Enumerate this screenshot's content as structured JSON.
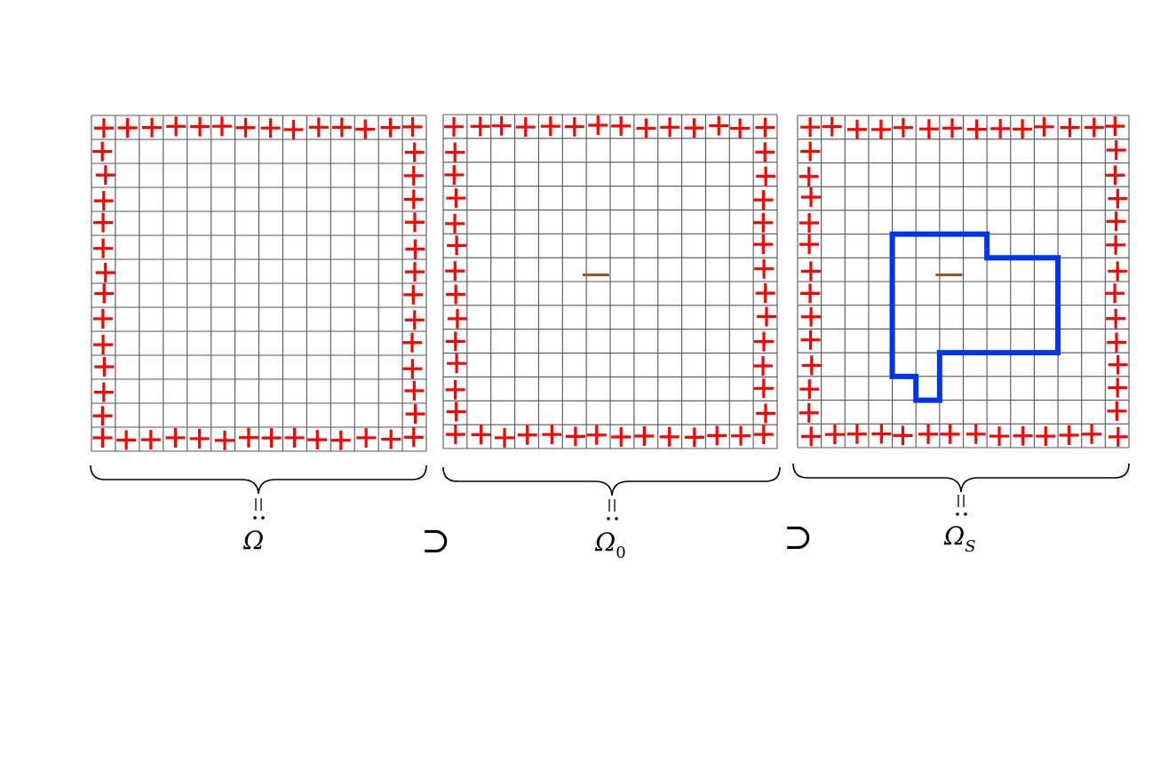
{
  "panels": [
    {
      "id": "omega",
      "label": "Ω",
      "subscript": "",
      "has_center_marker": false,
      "has_region": false
    },
    {
      "id": "omega0",
      "label": "Ω",
      "subscript": "0",
      "has_center_marker": true,
      "has_region": false
    },
    {
      "id": "omegaS",
      "label": "Ω",
      "subscript": "S",
      "has_center_marker": true,
      "has_region": true
    }
  ],
  "relations": [
    {
      "symbol": "⊃"
    },
    {
      "symbol": "⊃"
    }
  ],
  "equality_mark": "=",
  "grid": {
    "cells": 14
  },
  "colors": {
    "grid": "#555555",
    "boundary_plus": "#ff0000",
    "center_marker": "#a0522d",
    "region": "#0033ee",
    "brace": "#000000"
  }
}
